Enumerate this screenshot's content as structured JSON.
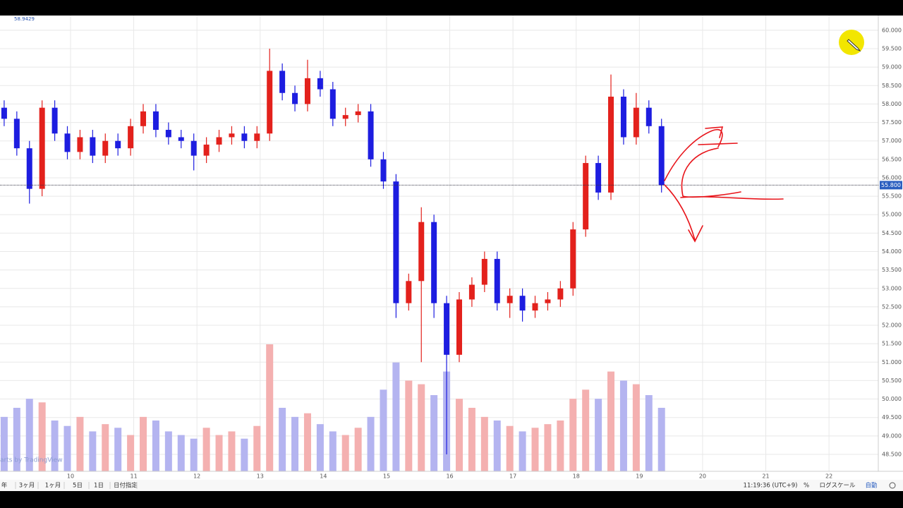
{
  "header_value": "58.9429",
  "watermark": "arts by TradingView",
  "toolbar": {
    "ranges": [
      "年",
      "3ヶ月",
      "1ヶ月",
      "5日",
      "1日",
      "日付指定"
    ],
    "clock": "11:19:36 (UTC+9)",
    "percent": "%",
    "log": "ログスケール",
    "auto": "自動"
  },
  "chart_data": {
    "type": "candlestick",
    "x": [
      8.95,
      9.15,
      9.35,
      9.55,
      9.75,
      9.95,
      10.15,
      10.35,
      10.55,
      10.75,
      10.95,
      11.15,
      11.35,
      11.55,
      11.75,
      11.95,
      12.15,
      12.35,
      12.55,
      12.75,
      12.95,
      13.15,
      13.35,
      13.55,
      13.75,
      13.95,
      14.15,
      14.35,
      14.55,
      14.75,
      14.95,
      15.15,
      15.35,
      15.55,
      15.75,
      15.95,
      16.15,
      16.35,
      16.55,
      16.75,
      16.95,
      17.15,
      17.35,
      17.55,
      17.75,
      17.95,
      18.15,
      18.35,
      18.55,
      18.75,
      18.95,
      19.15,
      19.35
    ],
    "open": [
      57.9,
      57.6,
      56.8,
      55.7,
      57.9,
      57.2,
      56.7,
      57.1,
      56.6,
      57.0,
      56.8,
      57.4,
      57.8,
      57.3,
      57.1,
      57.0,
      56.6,
      56.9,
      57.1,
      57.2,
      57.0,
      57.2,
      58.9,
      58.3,
      58.0,
      58.7,
      58.4,
      57.6,
      57.7,
      57.8,
      56.5,
      55.9,
      52.6,
      53.2,
      54.8,
      52.6,
      51.2,
      52.7,
      53.1,
      53.8,
      52.6,
      52.8,
      52.4,
      52.6,
      52.7,
      53.0,
      54.6,
      56.4,
      55.6,
      58.2,
      57.1,
      57.9,
      57.4
    ],
    "high": [
      58.1,
      57.8,
      57.0,
      58.1,
      58.1,
      57.4,
      57.3,
      57.3,
      57.2,
      57.2,
      57.6,
      58.0,
      58.0,
      57.5,
      57.3,
      57.2,
      57.1,
      57.3,
      57.4,
      57.4,
      57.4,
      59.5,
      59.1,
      58.5,
      59.2,
      58.9,
      58.6,
      57.9,
      58.0,
      58.0,
      56.7,
      56.1,
      53.4,
      55.2,
      55.0,
      52.8,
      52.9,
      53.3,
      54.0,
      54.0,
      53.0,
      53.0,
      52.8,
      52.9,
      53.2,
      54.8,
      56.6,
      56.6,
      58.8,
      58.4,
      58.3,
      58.1,
      57.6
    ],
    "low": [
      57.4,
      56.6,
      55.3,
      55.5,
      57.0,
      56.5,
      56.5,
      56.4,
      56.4,
      56.6,
      56.6,
      57.2,
      57.1,
      56.9,
      56.8,
      56.2,
      56.4,
      56.7,
      56.9,
      56.8,
      56.8,
      57.0,
      58.1,
      57.8,
      57.8,
      58.2,
      57.4,
      57.4,
      57.5,
      56.3,
      55.7,
      52.2,
      52.4,
      51.0,
      52.2,
      48.5,
      51.0,
      52.5,
      52.9,
      52.4,
      52.2,
      52.1,
      52.2,
      52.4,
      52.5,
      52.8,
      54.4,
      55.4,
      55.4,
      56.9,
      56.9,
      57.2,
      55.6
    ],
    "close": [
      57.6,
      56.8,
      55.7,
      57.9,
      57.2,
      56.7,
      57.1,
      56.6,
      57.0,
      56.8,
      57.4,
      57.8,
      57.3,
      57.1,
      57.0,
      56.6,
      56.9,
      57.1,
      57.2,
      57.0,
      57.2,
      58.9,
      58.3,
      58.0,
      58.7,
      58.4,
      57.6,
      57.7,
      57.8,
      56.5,
      55.9,
      52.6,
      53.2,
      54.8,
      52.6,
      51.2,
      52.7,
      53.1,
      53.8,
      52.6,
      52.8,
      52.4,
      52.6,
      52.7,
      53.0,
      54.6,
      56.4,
      55.6,
      58.2,
      57.1,
      57.9,
      57.4,
      55.8
    ],
    "volume": [
      30,
      35,
      40,
      38,
      28,
      25,
      30,
      22,
      26,
      24,
      20,
      30,
      28,
      22,
      20,
      18,
      24,
      20,
      22,
      18,
      25,
      70,
      35,
      30,
      32,
      26,
      22,
      20,
      24,
      30,
      45,
      60,
      50,
      48,
      42,
      55,
      40,
      35,
      30,
      28,
      25,
      22,
      24,
      26,
      28,
      40,
      45,
      40,
      55,
      50,
      48,
      42,
      35
    ],
    "up_color": "#e3211c",
    "down_color": "#1d1de0",
    "volume_up_color": "#f4b0b0",
    "volume_down_color": "#b4b4f0",
    "xlim": [
      8.884,
      22.78
    ],
    "ylim": [
      48.04,
      60.4
    ],
    "xticks": [
      10,
      11,
      12,
      13,
      14,
      15,
      16,
      17,
      18,
      19,
      20,
      21,
      22
    ],
    "yticks": [
      {
        "value": 48.5,
        "label": "48.500"
      },
      {
        "value": 49,
        "label": "49.000"
      },
      {
        "value": 49.5,
        "label": "49.500"
      },
      {
        "value": 50,
        "label": "50.000"
      },
      {
        "value": 50.5,
        "label": "50.500"
      },
      {
        "value": 51,
        "label": "51.000"
      },
      {
        "value": 51.5,
        "label": "51.500"
      },
      {
        "value": 52,
        "label": "52.000"
      },
      {
        "value": 52.5,
        "label": "52.500"
      },
      {
        "value": 53,
        "label": "53.000"
      },
      {
        "value": 53.5,
        "label": "53.500"
      },
      {
        "value": 54,
        "label": "54.000"
      },
      {
        "value": 54.5,
        "label": "54.500"
      },
      {
        "value": 55,
        "label": "55.000"
      },
      {
        "value": 55.5,
        "label": "55.500"
      },
      {
        "value": 56,
        "label": "56.000"
      },
      {
        "value": 56.5,
        "label": "56.500"
      },
      {
        "value": 57,
        "label": "57.000"
      },
      {
        "value": 57.5,
        "label": "57.500"
      },
      {
        "value": 58,
        "label": "58.000"
      },
      {
        "value": 58.5,
        "label": "58.500"
      },
      {
        "value": 59,
        "label": "59.000"
      },
      {
        "value": 59.5,
        "label": "59.500"
      },
      {
        "value": 60,
        "label": "60.000"
      }
    ],
    "grid": true,
    "last_price": {
      "value": 55.8,
      "label": "55.800"
    }
  }
}
